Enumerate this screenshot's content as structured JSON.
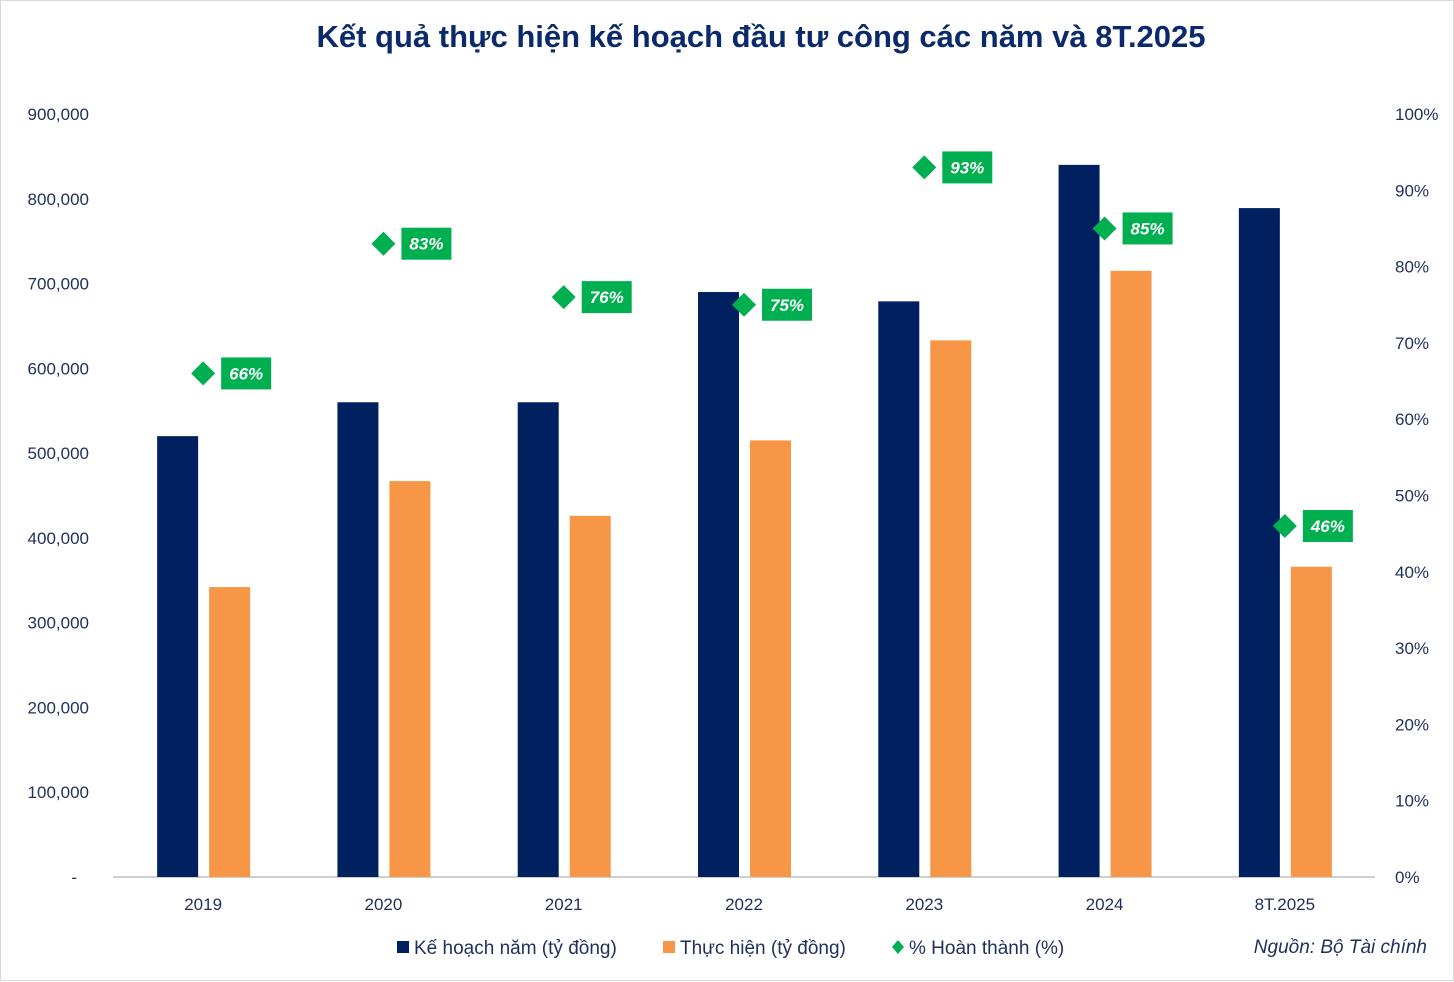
{
  "chart_data": {
    "type": "bar",
    "title": "Kết quả thực hiện kế hoạch đầu tư công các năm và 8T.2025",
    "categories": [
      "2019",
      "2020",
      "2021",
      "2022",
      "2023",
      "2024",
      "8T.2025"
    ],
    "series": [
      {
        "name": "Kế hoạch năm (tỷ đồng)",
        "type": "bar",
        "axis": "left",
        "color": "#002060",
        "values": [
          520000,
          560000,
          560000,
          690000,
          679000,
          840000,
          789000
        ]
      },
      {
        "name": "Thực hiện (tỷ đồng)",
        "type": "bar",
        "axis": "left",
        "color": "#f79646",
        "values": [
          342000,
          467000,
          426000,
          515000,
          633000,
          715000,
          366000
        ]
      },
      {
        "name": "% Hoàn thành (%)",
        "type": "scatter",
        "marker": "diamond",
        "axis": "right",
        "color": "#00b050",
        "values": [
          66,
          83,
          76,
          75,
          93,
          85,
          46
        ],
        "labels": [
          "66%",
          "83%",
          "76%",
          "75%",
          "93%",
          "85%",
          "46%"
        ]
      }
    ],
    "y_left": {
      "ylim": [
        0,
        900000
      ],
      "ticks": [
        "-",
        "100,000",
        "200,000",
        "300,000",
        "400,000",
        "500,000",
        "600,000",
        "700,000",
        "800,000",
        "900,000"
      ]
    },
    "y_right": {
      "ylim": [
        0,
        100
      ],
      "ticks": [
        "0%",
        "10%",
        "20%",
        "30%",
        "40%",
        "50%",
        "60%",
        "70%",
        "80%",
        "90%",
        "100%"
      ]
    },
    "grid": false,
    "legend_position": "bottom",
    "source": "Nguồn: Bộ Tài chính"
  }
}
